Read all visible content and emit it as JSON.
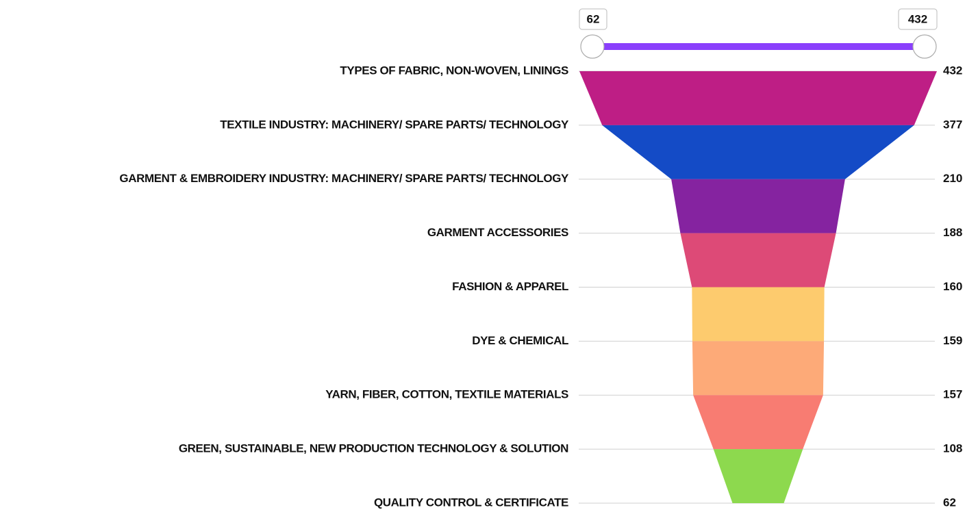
{
  "chart_data": {
    "type": "funnel",
    "categories": [
      "TYPES OF FABRIC, NON-WOVEN, LININGS",
      "TEXTILE INDUSTRY: MACHINERY/ SPARE PARTS/ TECHNOLOGY",
      "GARMENT & EMBROIDERY INDUSTRY: MACHINERY/ SPARE PARTS/ TECHNOLOGY",
      "GARMENT ACCESSORIES",
      "FASHION & APPAREL",
      "DYE & CHEMICAL",
      "YARN, FIBER, COTTON, TEXTILE MATERIALS",
      "GREEN, SUSTAINABLE, NEW PRODUCTION TECHNOLOGY & SOLUTION",
      "QUALITY CONTROL & CERTIFICATE"
    ],
    "values": [
      432,
      377,
      210,
      188,
      160,
      159,
      157,
      108,
      62
    ],
    "segment_colors": [
      "#be1e85",
      "#144bc6",
      "#8523a0",
      "#dd4a77",
      "#fdcb6e",
      "#fdaa78",
      "#f87c72",
      "#8dd94e"
    ],
    "range": [
      62,
      432
    ],
    "slider_color": "#8a3ffc",
    "grid": true
  }
}
